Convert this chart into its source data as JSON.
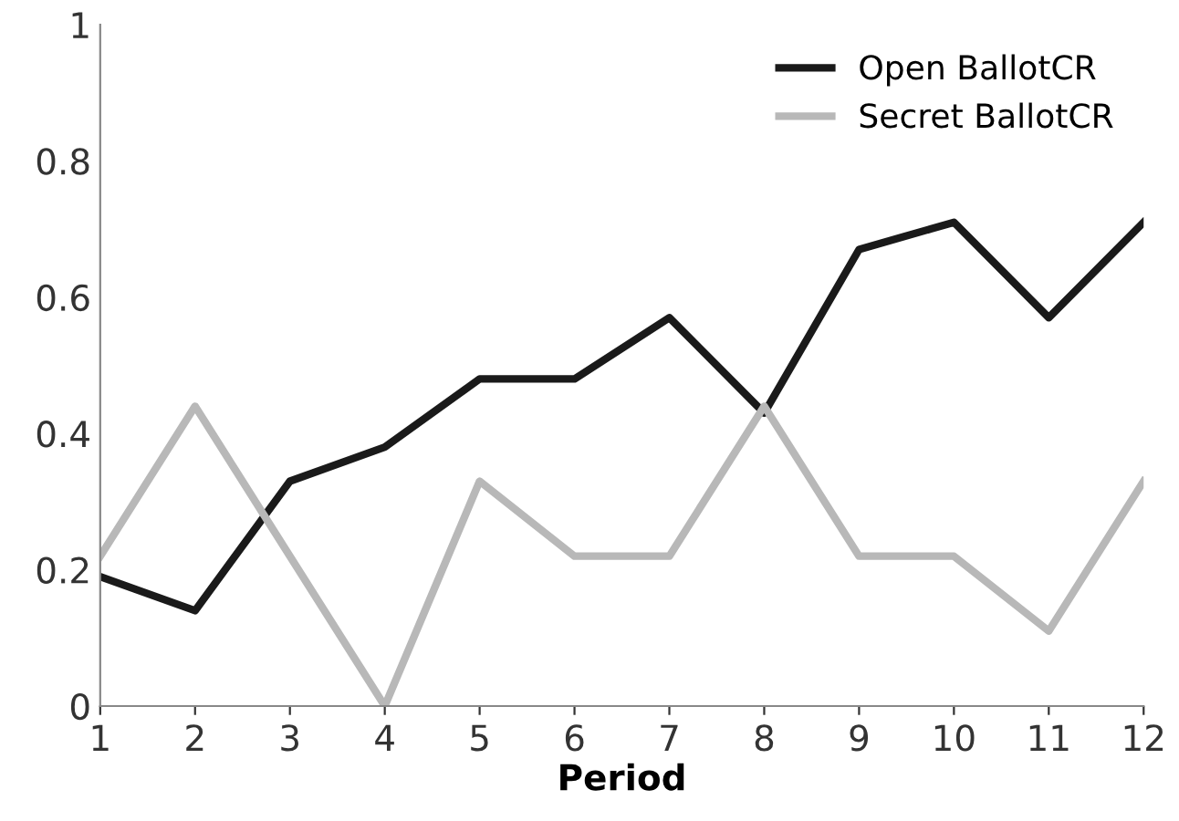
{
  "chart_data": {
    "type": "line",
    "xlabel": "Period",
    "x": [
      1,
      2,
      3,
      4,
      5,
      6,
      7,
      8,
      9,
      10,
      11,
      12
    ],
    "series": [
      {
        "name": "Open BallotCR",
        "color": "#1a1a1a",
        "values": [
          0.19,
          0.14,
          0.33,
          0.38,
          0.48,
          0.48,
          0.57,
          0.43,
          0.67,
          0.71,
          0.57,
          0.71
        ]
      },
      {
        "name": "Secret BallotCR",
        "color": "#b8b8b8",
        "values": [
          0.22,
          0.44,
          0.22,
          0,
          0.33,
          0.22,
          0.22,
          0.44,
          0.22,
          0.22,
          0.11,
          0.33
        ]
      }
    ],
    "xlim": [
      1,
      12
    ],
    "xticks": [
      1,
      2,
      3,
      4,
      5,
      6,
      7,
      8,
      9,
      10,
      11,
      12
    ],
    "ylim": [
      0,
      1
    ],
    "yticks": [
      0,
      0.2,
      0.4,
      0.6,
      0.8,
      1
    ],
    "grid": false,
    "legend": "top right",
    "marker": "none",
    "line_style": "solid"
  }
}
